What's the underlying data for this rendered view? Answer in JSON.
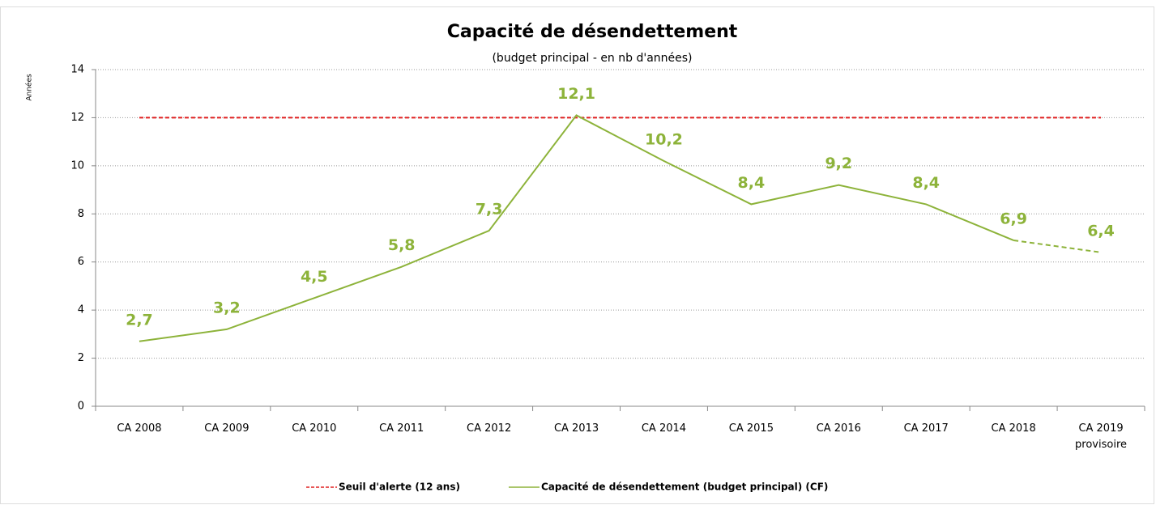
{
  "chart_data": {
    "type": "line",
    "title": "Capacité de désendettement",
    "subtitle": "(budget principal - en nb d'années)",
    "y_label": "Années",
    "categories": [
      "CA 2008",
      "CA 2009",
      "CA 2010",
      "CA 2011",
      "CA 2012",
      "CA 2013",
      "CA 2014",
      "CA 2015",
      "CA 2016",
      "CA 2017",
      "CA 2018",
      "CA 2019\nprovisoire"
    ],
    "series": [
      {
        "name": "Seuil d'alerte (12 ans)",
        "color": "#e02020",
        "dashed": true,
        "values": [
          12,
          12,
          12,
          12,
          12,
          12,
          12,
          12,
          12,
          12,
          12,
          12
        ]
      },
      {
        "name": "Capacité de désendettement (budget principal) (CF)",
        "color": "#8db33a",
        "dashed_last_segment": true,
        "values": [
          2.7,
          3.2,
          4.5,
          5.8,
          7.3,
          12.1,
          10.2,
          8.4,
          9.2,
          8.4,
          6.9,
          6.4
        ],
        "value_labels": [
          "2,7",
          "3,2",
          "4,5",
          "5,8",
          "7,3",
          "12,1",
          "10,2",
          "8,4",
          "9,2",
          "8,4",
          "6,9",
          "6,4"
        ]
      }
    ],
    "ylim": [
      0,
      14
    ],
    "yticks": [
      0,
      2,
      4,
      6,
      8,
      10,
      12,
      14
    ],
    "grid": true,
    "legend": "bottom"
  }
}
